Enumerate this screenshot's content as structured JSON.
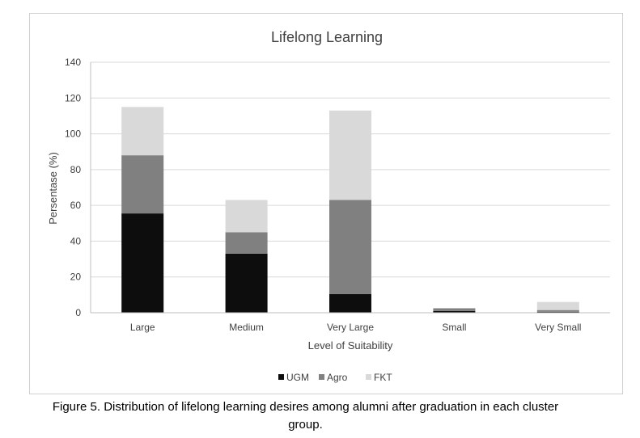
{
  "chart_data": {
    "type": "bar",
    "stacked": true,
    "title": "Lifelong Learning",
    "xlabel": "Level of Suitability",
    "ylabel": "Persentase (%)",
    "ylim": [
      0,
      140
    ],
    "yticks": [
      0,
      20,
      40,
      60,
      80,
      100,
      120,
      140
    ],
    "grid": true,
    "legend_position": "bottom",
    "categories": [
      "Large",
      "Medium",
      "Very Large",
      "Small",
      "Very Small"
    ],
    "series": [
      {
        "name": "UGM",
        "color": "#0d0d0d",
        "values": [
          55.5,
          33,
          10.5,
          1,
          0.5
        ]
      },
      {
        "name": "Agro",
        "color": "#808080",
        "values": [
          32.5,
          12,
          52.5,
          1.5,
          1
        ]
      },
      {
        "name": "FKT",
        "color": "#d9d9d9",
        "values": [
          27,
          18,
          50,
          0,
          4.5
        ]
      }
    ]
  },
  "caption": {
    "line1": "Figure 5. Distribution of lifelong learning desires among alumni after graduation in each cluster",
    "line2": "group."
  }
}
